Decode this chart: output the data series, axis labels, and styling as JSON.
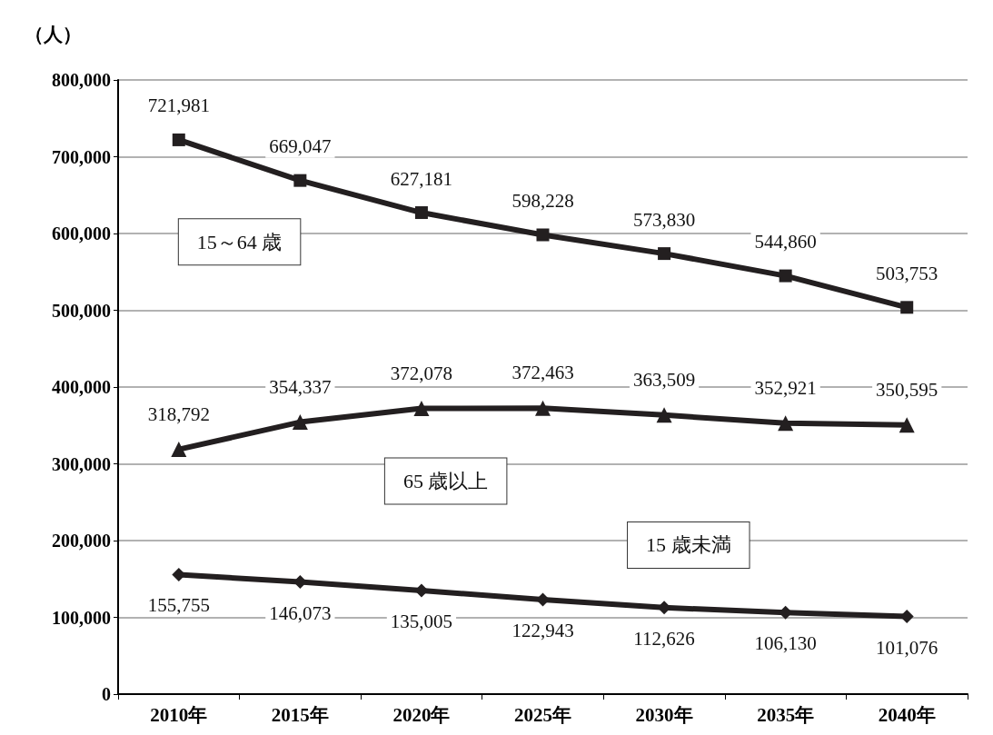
{
  "chart_data": {
    "type": "line",
    "ylabel": "（人）",
    "categories": [
      "2010年",
      "2015年",
      "2020年",
      "2025年",
      "2030年",
      "2035年",
      "2040年"
    ],
    "series": [
      {
        "name": "15～64 歳",
        "color": "#231f20",
        "marker": "square",
        "values": [
          721981,
          669047,
          627181,
          598228,
          573830,
          544860,
          503753
        ],
        "value_labels": [
          "721,981",
          "669,047",
          "627,181",
          "598,228",
          "573,830",
          "544,860",
          "503,753"
        ]
      },
      {
        "name": "65 歳以上",
        "color": "#231f20",
        "marker": "triangle",
        "values": [
          318792,
          354337,
          372078,
          372463,
          363509,
          352921,
          350595
        ],
        "value_labels": [
          "318,792",
          "354,337",
          "372,078",
          "372,463",
          "363,509",
          "352,921",
          "350,595"
        ]
      },
      {
        "name": "15 歳未満",
        "color": "#231f20",
        "marker": "diamond",
        "values": [
          155755,
          146073,
          135005,
          122943,
          112626,
          106130,
          101076
        ],
        "value_labels": [
          "155,755",
          "146,073",
          "135,005",
          "122,943",
          "112,626",
          "106,130",
          "101,076"
        ]
      }
    ],
    "ylim": [
      0,
      800000
    ],
    "yticks": [
      0,
      {
        "value": 100000,
        "label": "100,000"
      },
      {
        "value": 200000,
        "label": "200,000"
      },
      {
        "value": 300000,
        "label": "300,000"
      },
      {
        "value": 400000,
        "label": "400,000"
      },
      {
        "value": 500000,
        "label": "500,000"
      },
      {
        "value": 600000,
        "label": "600,000"
      },
      {
        "value": 700000,
        "label": "700,000"
      },
      {
        "value": 800000,
        "label": "800,000"
      }
    ],
    "grid": "y",
    "legend": false,
    "line_style": "solid"
  }
}
